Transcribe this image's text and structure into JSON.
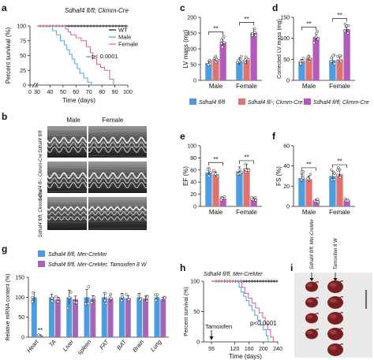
{
  "panels": {
    "a": "a",
    "b": "b",
    "c": "c",
    "d": "d",
    "e": "e",
    "f": "f",
    "g": "g",
    "h": "h",
    "i": "i"
  },
  "colors": {
    "wt": "#222222",
    "male": "#56a8e8",
    "female": "#d46aa7",
    "c1": "#4b9ce0",
    "c2": "#e07272",
    "c3": "#b25bb8",
    "g1": "#4b9ce0",
    "g2": "#a566b8"
  },
  "chart_data": [
    {
      "id": "a",
      "type": "line",
      "title": "Sdhaf4 fl/fl; Ckmm-Cre",
      "xlabel": "Time (days)",
      "ylabel": "Percent survival (%)",
      "xlim": [
        0,
        100
      ],
      "ylim": [
        0,
        100
      ],
      "xticks": [
        "0",
        "30",
        "40",
        "50",
        "60",
        "70",
        "80",
        "90",
        "100"
      ],
      "yticks": [
        "0",
        "25",
        "50",
        "75",
        "100"
      ],
      "legend": [
        "WT",
        "Male",
        "Female"
      ],
      "annotation": "p< 0.0001",
      "series": [
        {
          "name": "WT",
          "points": [
            [
              30,
              100
            ],
            [
              100,
              100
            ]
          ]
        },
        {
          "name": "Male",
          "points": [
            [
              30,
              100
            ],
            [
              40,
              100
            ],
            [
              42,
              92
            ],
            [
              45,
              85
            ],
            [
              48,
              75
            ],
            [
              51,
              68
            ],
            [
              53,
              60
            ],
            [
              55,
              52
            ],
            [
              57,
              44
            ],
            [
              59,
              36
            ],
            [
              61,
              28
            ],
            [
              63,
              20
            ],
            [
              66,
              12
            ],
            [
              69,
              5
            ],
            [
              72,
              0
            ]
          ]
        },
        {
          "name": "Female",
          "points": [
            [
              30,
              100
            ],
            [
              50,
              100
            ],
            [
              52,
              95
            ],
            [
              54,
              90
            ],
            [
              56,
              85
            ],
            [
              60,
              80
            ],
            [
              64,
              75
            ],
            [
              68,
              65
            ],
            [
              71,
              55
            ],
            [
              73,
              45
            ],
            [
              76,
              35
            ],
            [
              79,
              30
            ],
            [
              82,
              25
            ],
            [
              86,
              10
            ],
            [
              89,
              0
            ]
          ]
        }
      ]
    },
    {
      "id": "c",
      "type": "bar",
      "title": "",
      "ylabel": "LV mass (mg)",
      "ylim": [
        0,
        200
      ],
      "yticks": [
        "0",
        "50",
        "100",
        "150",
        "200"
      ],
      "categories": [
        "Male",
        "Female"
      ],
      "series": [
        {
          "name": "",
          "values": [
            55,
            60
          ],
          "errors": [
            6,
            12
          ]
        },
        {
          "name": "",
          "values": [
            68,
            62
          ],
          "errors": [
            7,
            10
          ]
        },
        {
          "name": "",
          "values": [
            122,
            152
          ],
          "errors": [
            12,
            12
          ]
        }
      ],
      "significance": [
        "**",
        "**"
      ]
    },
    {
      "id": "d",
      "type": "bar",
      "title": "",
      "ylabel": "Corrected LV mass (mg)",
      "ylim": [
        0,
        150
      ],
      "yticks": [
        "0",
        "50",
        "100",
        "150"
      ],
      "categories": [
        "Male",
        "Female"
      ],
      "series": [
        {
          "name": "Sdhaf4 fl/fl",
          "values": [
            45,
            48
          ],
          "errors": [
            5,
            8
          ]
        },
        {
          "name": "Sdhaf4 fl/-; Ckmm-Cre",
          "values": [
            53,
            50
          ],
          "errors": [
            6,
            7
          ]
        },
        {
          "name": "Sdhaf4 fl/fl; Ckmm-Cre",
          "values": [
            103,
            122
          ],
          "errors": [
            9,
            10
          ]
        }
      ],
      "significance": [
        "**",
        "**"
      ]
    },
    {
      "id": "e",
      "type": "bar",
      "title": "",
      "ylabel": "EF (%)",
      "ylim": [
        0,
        100
      ],
      "yticks": [
        "0",
        "20",
        "40",
        "60",
        "80",
        "100"
      ],
      "categories": [
        "Male",
        "Female"
      ],
      "series": [
        {
          "name": "",
          "values": [
            56,
            58
          ],
          "errors": [
            6,
            7
          ]
        },
        {
          "name": "",
          "values": [
            53,
            63
          ],
          "errors": [
            4,
            6
          ]
        },
        {
          "name": "",
          "values": [
            13,
            13
          ],
          "errors": [
            2,
            2
          ]
        }
      ],
      "significance": [
        "**",
        "**"
      ]
    },
    {
      "id": "f",
      "type": "bar",
      "title": "",
      "ylabel": "FS (%)",
      "ylim": [
        0,
        60
      ],
      "yticks": [
        "0",
        "20",
        "40",
        "60"
      ],
      "categories": [
        "Male",
        "Female"
      ],
      "series": [
        {
          "name": "",
          "values": [
            28,
            30
          ],
          "errors": [
            4,
            5
          ]
        },
        {
          "name": "",
          "values": [
            27,
            32
          ],
          "errors": [
            3,
            4
          ]
        },
        {
          "name": "",
          "values": [
            6,
            6
          ],
          "errors": [
            1,
            1
          ]
        }
      ],
      "significance": [
        "**",
        "**"
      ]
    },
    {
      "id": "g",
      "type": "bar",
      "title": "",
      "ylabel": "Relative mRNA content (%)",
      "ylim": [
        0,
        150
      ],
      "yticks": [
        "0",
        "50",
        "100",
        "150"
      ],
      "categories": [
        "Heart",
        "TA",
        "Liver",
        "spleen",
        "FAT",
        "BAT",
        "Brain",
        "Lung"
      ],
      "series": [
        {
          "name": "Sdhaf4 fl/fl, Mer-CreMer",
          "values": [
            100,
            100,
            100,
            100,
            100,
            100,
            100,
            100
          ],
          "errors": [
            12,
            8,
            18,
            20,
            12,
            10,
            10,
            8
          ]
        },
        {
          "name": "Sdhaf4 fl/fl, Mer-CreMer, Tamoxifen 8 W",
          "values": [
            4,
            95,
            95,
            96,
            97,
            98,
            97,
            95
          ],
          "errors": [
            2,
            5,
            8,
            8,
            10,
            6,
            6,
            5
          ]
        }
      ],
      "significance": [
        "**",
        "",
        "",
        "",
        "",
        "",
        "",
        ""
      ]
    },
    {
      "id": "h",
      "type": "line",
      "title": "Sdhaf4 fl/fl, Mer-CreMer",
      "xlabel": "Time (days)",
      "ylabel": "Percent survival (%)",
      "xlim": [
        0,
        240
      ],
      "ylim": [
        0,
        100
      ],
      "xticks": [
        "0",
        "55",
        "120",
        "160",
        "200",
        "240"
      ],
      "yticks": [
        "0",
        "50",
        "100"
      ],
      "annotation": "p<0.0001",
      "arrow_label": "Tamoxifen",
      "series": [
        {
          "name": "",
          "points": [
            [
              55,
              100
            ],
            [
              240,
              100
            ]
          ]
        },
        {
          "name": "",
          "points": [
            [
              55,
              100
            ],
            [
              128,
              100
            ],
            [
              132,
              90
            ],
            [
              138,
              82
            ],
            [
              145,
              75
            ],
            [
              152,
              68
            ],
            [
              160,
              60
            ],
            [
              168,
              52
            ],
            [
              176,
              44
            ],
            [
              184,
              36
            ],
            [
              192,
              28
            ],
            [
              200,
              20
            ],
            [
              208,
              10
            ],
            [
              213,
              0
            ]
          ]
        },
        {
          "name": "",
          "points": [
            [
              55,
              100
            ],
            [
              135,
              100
            ],
            [
              140,
              90
            ],
            [
              148,
              80
            ],
            [
              158,
              72
            ],
            [
              168,
              64
            ],
            [
              178,
              56
            ],
            [
              188,
              48
            ],
            [
              198,
              40
            ],
            [
              205,
              30
            ],
            [
              212,
              20
            ],
            [
              220,
              8
            ],
            [
              228,
              0
            ]
          ]
        }
      ]
    }
  ],
  "b": {
    "col_male": "Male",
    "col_female": "Female",
    "rows": [
      "Sdhaf4 fl/fl",
      "Sdhaf4 fl/-; Ckmm-Cre",
      "Sdhaf4 fl/fl; Ckmm-Cre"
    ]
  },
  "i": {
    "col1": "Sdhaf4 fl/fl, Mer-CreMer",
    "col2": "Tamoxifen 8 W"
  }
}
